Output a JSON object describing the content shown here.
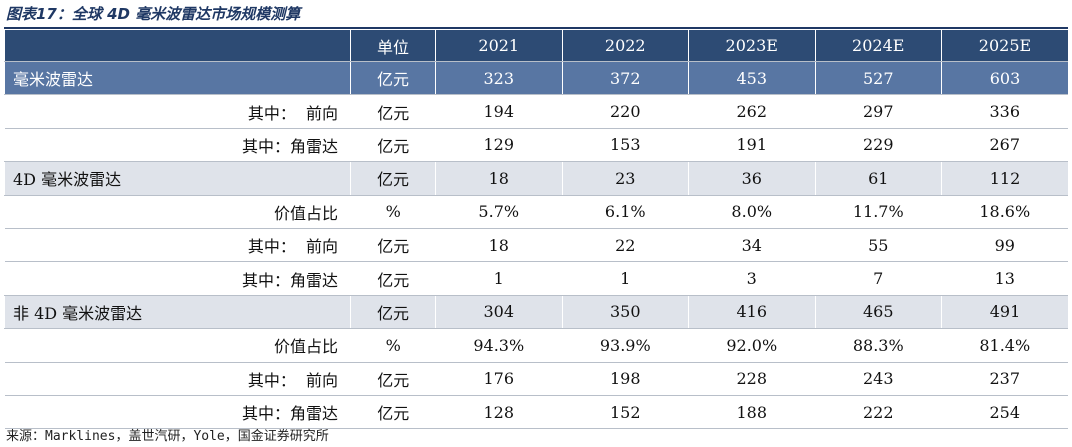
{
  "title": "图表17：全球 4D 毫米波雷达市场规模测算",
  "table": {
    "unit_header": "单位",
    "years": [
      "2021",
      "2022",
      "2023E",
      "2024E",
      "2025E"
    ],
    "rows": [
      {
        "label": "毫米波雷达",
        "unit": "亿元",
        "values": [
          323,
          372,
          453,
          527,
          603
        ]
      },
      {
        "label": "其中：  前向",
        "unit": "亿元",
        "values": [
          194,
          220,
          262,
          297,
          336
        ]
      },
      {
        "label": "其中：角雷达",
        "unit": "亿元",
        "values": [
          129,
          153,
          191,
          229,
          267
        ]
      },
      {
        "label": "4D 毫米波雷达",
        "unit": "亿元",
        "values": [
          18,
          23,
          36,
          61,
          112
        ]
      },
      {
        "label": "价值占比",
        "unit": "%",
        "values": [
          "5.7%",
          "6.1%",
          "8.0%",
          "11.7%",
          "18.6%"
        ]
      },
      {
        "label": "其中：  前向",
        "unit": "亿元",
        "values": [
          18,
          22,
          34,
          55,
          99
        ]
      },
      {
        "label": "其中：角雷达",
        "unit": "亿元",
        "values": [
          1,
          1,
          3,
          7,
          13
        ]
      },
      {
        "label": "非 4D 毫米波雷达",
        "unit": "亿元",
        "values": [
          304,
          350,
          416,
          465,
          491
        ]
      },
      {
        "label": "价值占比",
        "unit": "%",
        "values": [
          "94.3%",
          "93.9%",
          "92.0%",
          "88.3%",
          "81.4%"
        ]
      },
      {
        "label": "其中：  前向",
        "unit": "亿元",
        "values": [
          176,
          198,
          228,
          243,
          237
        ]
      },
      {
        "label": "其中：角雷达",
        "unit": "亿元",
        "values": [
          128,
          152,
          188,
          222,
          254
        ]
      }
    ]
  },
  "source": "来源：Marklines，盖世汽研，Yole，国金证券研究所"
}
